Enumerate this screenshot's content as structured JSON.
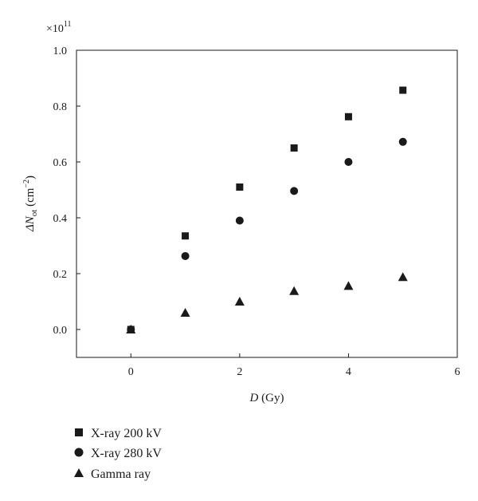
{
  "chart_data": {
    "type": "scatter",
    "multiplier": {
      "base": "×10",
      "exp": "11"
    },
    "xlabel": {
      "main": "D",
      "unit": "(Gy)"
    },
    "ylabel": {
      "main": "ΔN",
      "sub": "ot",
      "unit_open": "(cm",
      "unit_exp": "−2",
      "unit_close": ")"
    },
    "xlim": [
      -1,
      6
    ],
    "ylim": [
      -0.1,
      1.0
    ],
    "xticks": [
      0,
      2,
      4,
      6
    ],
    "yticks": [
      0.0,
      0.2,
      0.4,
      0.6,
      0.8,
      1.0
    ],
    "xtick_labels": [
      "0",
      "2",
      "4",
      "6"
    ],
    "ytick_labels": [
      "0.0",
      "0.2",
      "0.4",
      "0.6",
      "0.8",
      "1.0"
    ],
    "series": [
      {
        "name": "X-ray 200 kV",
        "marker": "square",
        "x": [
          0,
          1,
          2,
          3,
          4,
          5
        ],
        "y": [
          0.0,
          0.335,
          0.51,
          0.65,
          0.762,
          0.857
        ]
      },
      {
        "name": "X-ray 280 kV",
        "marker": "circle",
        "x": [
          0,
          1,
          2,
          3,
          4,
          5
        ],
        "y": [
          0.0,
          0.263,
          0.39,
          0.496,
          0.6,
          0.672
        ]
      },
      {
        "name": "Gamma ray",
        "marker": "triangle",
        "x": [
          0,
          1,
          2,
          3,
          4,
          5
        ],
        "y": [
          0.0,
          0.06,
          0.1,
          0.138,
          0.156,
          0.188
        ]
      }
    ],
    "legend_position": "bottom-left",
    "grid": false
  }
}
